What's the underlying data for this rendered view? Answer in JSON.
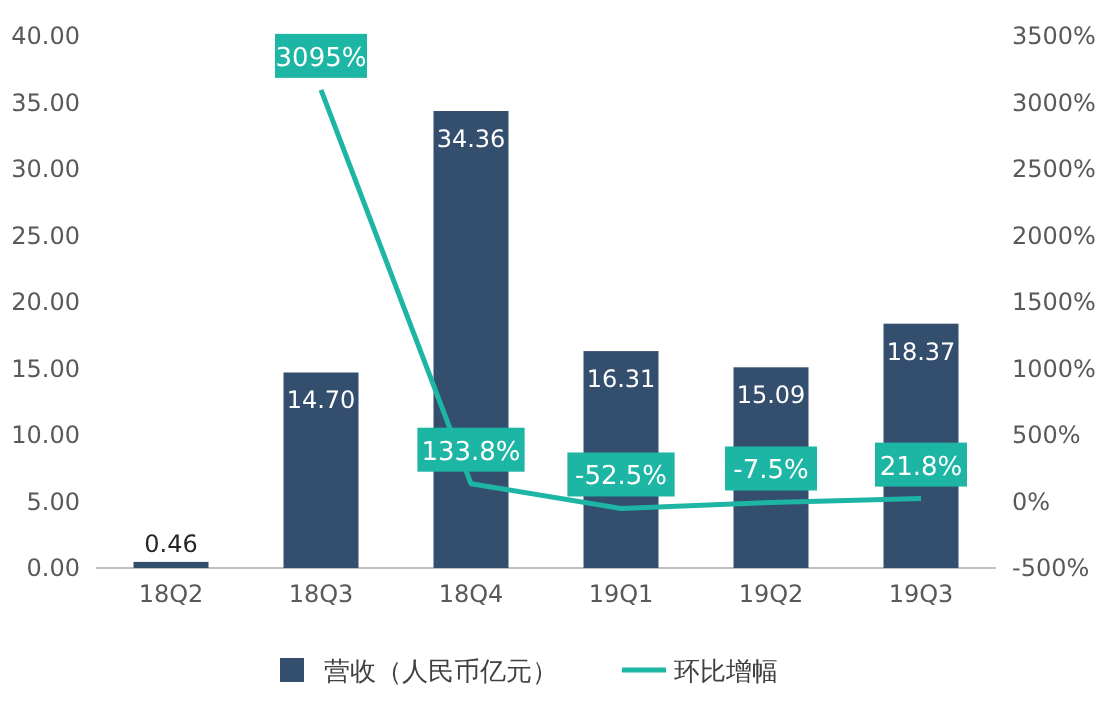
{
  "chart_data": {
    "type": "bar",
    "categories": [
      "18Q2",
      "18Q3",
      "18Q4",
      "19Q1",
      "19Q2",
      "19Q3"
    ],
    "series": [
      {
        "name": "营收（人民币亿元）",
        "color": "#344e6e",
        "values": [
          0.46,
          14.7,
          34.36,
          16.31,
          15.09,
          18.37
        ],
        "value_labels": [
          "0.46",
          "14.70",
          "34.36",
          "16.31",
          "15.09",
          "18.37"
        ]
      },
      {
        "name": "环比增幅",
        "type": "line",
        "axis": "y2",
        "color": "#1db5a3",
        "values": [
          null,
          3095,
          133.8,
          -52.5,
          -7.5,
          21.8
        ],
        "value_labels": [
          null,
          "3095%",
          "133.8%",
          "-52.5%",
          "-7.5%",
          "21.8%"
        ]
      }
    ],
    "ylim": [
      0,
      40
    ],
    "yticks": [
      {
        "value": 0,
        "label": "0.00"
      },
      {
        "value": 5,
        "label": "5.00"
      },
      {
        "value": 10,
        "label": "10.00"
      },
      {
        "value": 15,
        "label": "15.00"
      },
      {
        "value": 20,
        "label": "20.00"
      },
      {
        "value": 25,
        "label": "25.00"
      },
      {
        "value": 30,
        "label": "30.00"
      },
      {
        "value": 35,
        "label": "35.00"
      },
      {
        "value": 40,
        "label": "40.00"
      }
    ],
    "y2lim": [
      -500,
      3500
    ],
    "y2ticks": [
      {
        "value": -500,
        "label": "-500%"
      },
      {
        "value": 0,
        "label": "0%"
      },
      {
        "value": 500,
        "label": "500%"
      },
      {
        "value": 1000,
        "label": "1000%"
      },
      {
        "value": 1500,
        "label": "1500%"
      },
      {
        "value": 2000,
        "label": "2000%"
      },
      {
        "value": 2500,
        "label": "2500%"
      },
      {
        "value": 3000,
        "label": "3000%"
      },
      {
        "value": 3500,
        "label": "3500%"
      }
    ],
    "legend": "bottom"
  }
}
